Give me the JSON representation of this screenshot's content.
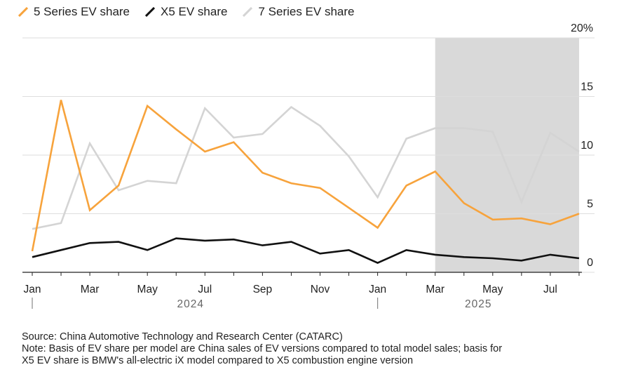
{
  "chart_data": {
    "type": "line",
    "title": "",
    "xlabel": "",
    "ylabel": "",
    "ylim": [
      0,
      20
    ],
    "y_ticks": [
      {
        "value": 0,
        "label": "0"
      },
      {
        "value": 5,
        "label": "5"
      },
      {
        "value": 10,
        "label": "10"
      },
      {
        "value": 15,
        "label": "15"
      },
      {
        "value": 20,
        "label": "20%"
      }
    ],
    "x": [
      "2024-01",
      "2024-02",
      "2024-03",
      "2024-04",
      "2024-05",
      "2024-06",
      "2024-07",
      "2024-08",
      "2024-09",
      "2024-10",
      "2024-11",
      "2024-12",
      "2025-01",
      "2025-02",
      "2025-03",
      "2025-04",
      "2025-05",
      "2025-06",
      "2025-07",
      "2025-08"
    ],
    "x_tick_labels": [
      {
        "month": "2024-01",
        "label": "Jan"
      },
      {
        "month": "2024-03",
        "label": "Mar"
      },
      {
        "month": "2024-05",
        "label": "May"
      },
      {
        "month": "2024-07",
        "label": "Jul"
      },
      {
        "month": "2024-09",
        "label": "Sep"
      },
      {
        "month": "2024-11",
        "label": "Nov"
      },
      {
        "month": "2025-01",
        "label": "Jan"
      },
      {
        "month": "2025-03",
        "label": "Mar"
      },
      {
        "month": "2025-05",
        "label": "May"
      },
      {
        "month": "2025-07",
        "label": "Jul"
      }
    ],
    "year_labels": [
      {
        "start": "2024-01",
        "label": "2024"
      },
      {
        "start": "2025-01",
        "label": "2025"
      }
    ],
    "shaded_region": {
      "from": "2025-03",
      "to": "2025-08",
      "color": "#d9d9d9"
    },
    "grid": true,
    "legend_position": "top-left",
    "series": [
      {
        "name": "5 Series EV share",
        "color": "#f7a33c",
        "values": [
          1.8,
          14.7,
          5.3,
          7.4,
          14.2,
          12.2,
          10.3,
          11.1,
          8.5,
          7.6,
          7.2,
          5.5,
          3.8,
          7.4,
          8.6,
          5.9,
          4.5,
          4.6,
          4.1,
          5.0
        ]
      },
      {
        "name": "X5 EV share",
        "color": "#111111",
        "values": [
          1.3,
          1.9,
          2.5,
          2.6,
          1.9,
          2.9,
          2.7,
          2.8,
          2.3,
          2.6,
          1.6,
          1.9,
          0.8,
          1.9,
          1.5,
          1.3,
          1.2,
          1.0,
          1.5,
          1.2
        ]
      },
      {
        "name": "7 Series EV share",
        "color": "#d4d4d4",
        "values": [
          3.7,
          4.2,
          11.0,
          7.0,
          7.8,
          7.6,
          14.0,
          11.5,
          11.8,
          14.1,
          12.5,
          9.9,
          6.4,
          11.4,
          12.3,
          12.3,
          12.0,
          6.0,
          11.9,
          10.3
        ]
      }
    ]
  },
  "footnote": {
    "source": "Source: China Automotive Technology and Research Center (CATARC)",
    "note_line1": "Note: Basis of EV share per model are China sales of EV versions compared to total model sales; basis for",
    "note_line2": "X5 EV share is BMW's all-electric iX model compared to X5 combustion engine version"
  }
}
